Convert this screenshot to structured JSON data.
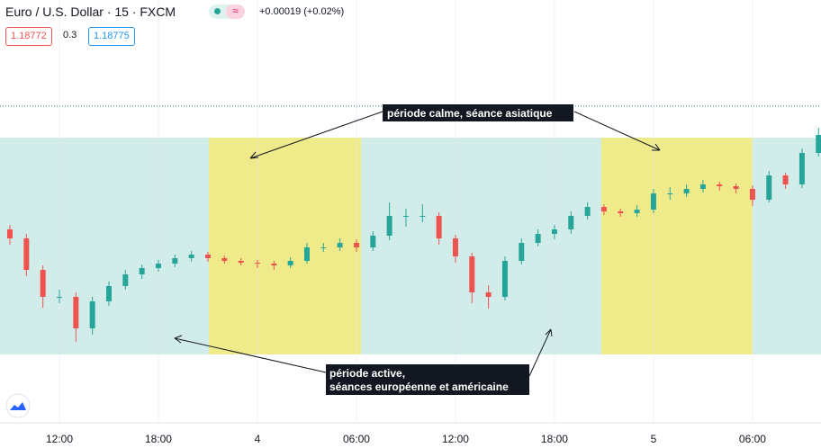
{
  "header": {
    "symbol": "Euro / U.S. Dollar · 15 · FXCM",
    "change": "+0.00019 (+0.02%)",
    "sell": "1.18772",
    "spread": "0.3",
    "buy": "1.18775"
  },
  "chart_data": {
    "type": "candlestick",
    "annotations": [
      [
        "période calme, séance asiatique"
      ],
      [
        "période active,",
        "séances européenne et américaine"
      ]
    ],
    "up_color": "#26a69a",
    "down_color": "#ef5350",
    "xlim": [
      8.4,
      58.15
    ],
    "ylim": [
      1.18452,
      1.18922
    ],
    "xticks": [
      {
        "value": 12,
        "label": "12:00"
      },
      {
        "value": 18,
        "label": "18:00"
      },
      {
        "value": 24,
        "label": "4"
      },
      {
        "value": 30,
        "label": "06:00"
      },
      {
        "value": 36,
        "label": "12:00"
      },
      {
        "value": 42,
        "label": "18:00"
      },
      {
        "value": 48,
        "label": "5"
      },
      {
        "value": 54,
        "label": "06:00"
      }
    ],
    "x": [
      9,
      10,
      11,
      12,
      13,
      14,
      15,
      16,
      17,
      18,
      19,
      20,
      21,
      22,
      23,
      24,
      25,
      26,
      27,
      28,
      29,
      30,
      31,
      32,
      33,
      34,
      35,
      36,
      37,
      38,
      39,
      40,
      41,
      42,
      43,
      44,
      45,
      46,
      47,
      48,
      49,
      50,
      51,
      52,
      53,
      54,
      55,
      56,
      57,
      58
    ],
    "open": [
      1.18667,
      1.18657,
      1.18622,
      1.18592,
      1.18592,
      1.18557,
      1.18587,
      1.18604,
      1.18617,
      1.18624,
      1.18629,
      1.18635,
      1.18639,
      1.18635,
      1.18632,
      1.1863,
      1.18629,
      1.18627,
      1.18632,
      1.18647,
      1.18647,
      1.18652,
      1.18647,
      1.1866,
      1.18682,
      1.18682,
      1.18682,
      1.18657,
      1.18637,
      1.18597,
      1.18592,
      1.18632,
      1.18652,
      1.18662,
      1.18667,
      1.18682,
      1.18692,
      1.18687,
      1.18685,
      1.18689,
      1.18707,
      1.18707,
      1.18712,
      1.18717,
      1.18715,
      1.18712,
      1.187,
      1.18727,
      1.18717,
      1.18752
    ],
    "high": [
      1.18672,
      1.18662,
      1.18627,
      1.186,
      1.18597,
      1.18592,
      1.18609,
      1.18622,
      1.18628,
      1.18633,
      1.18639,
      1.18643,
      1.18642,
      1.18638,
      1.18635,
      1.18633,
      1.18632,
      1.18636,
      1.18652,
      1.18652,
      1.18657,
      1.18656,
      1.18665,
      1.18697,
      1.1869,
      1.18695,
      1.18686,
      1.18661,
      1.18641,
      1.18605,
      1.18637,
      1.18657,
      1.18667,
      1.18672,
      1.18687,
      1.18697,
      1.18695,
      1.1869,
      1.18694,
      1.18712,
      1.18714,
      1.18717,
      1.18722,
      1.1872,
      1.18718,
      1.18716,
      1.18732,
      1.1873,
      1.18757,
      1.1878
    ],
    "low": [
      1.1865,
      1.18615,
      1.1858,
      1.18585,
      1.18542,
      1.1855,
      1.18582,
      1.186,
      1.18612,
      1.1862,
      1.18625,
      1.18631,
      1.18631,
      1.18629,
      1.18627,
      1.18624,
      1.18622,
      1.18624,
      1.18629,
      1.18642,
      1.18643,
      1.18642,
      1.18643,
      1.18655,
      1.1867,
      1.18675,
      1.1865,
      1.1863,
      1.18585,
      1.18579,
      1.18588,
      1.18628,
      1.18648,
      1.18656,
      1.18662,
      1.18678,
      1.18683,
      1.18681,
      1.18681,
      1.18685,
      1.187,
      1.18703,
      1.18708,
      1.1871,
      1.18707,
      1.18693,
      1.18697,
      1.18712,
      1.18713,
      1.18748
    ],
    "close": [
      1.18657,
      1.18622,
      1.18592,
      1.18592,
      1.18557,
      1.18587,
      1.18604,
      1.18617,
      1.18624,
      1.18629,
      1.18635,
      1.18639,
      1.18635,
      1.18632,
      1.1863,
      1.18629,
      1.18627,
      1.18632,
      1.18647,
      1.18647,
      1.18652,
      1.18647,
      1.1866,
      1.18682,
      1.18682,
      1.18682,
      1.18657,
      1.18637,
      1.18597,
      1.18592,
      1.18632,
      1.18652,
      1.18662,
      1.18667,
      1.18682,
      1.18692,
      1.18687,
      1.18685,
      1.18689,
      1.18707,
      1.18707,
      1.18712,
      1.18717,
      1.18715,
      1.18712,
      1.187,
      1.18727,
      1.18717,
      1.18752,
      1.18772
    ]
  }
}
